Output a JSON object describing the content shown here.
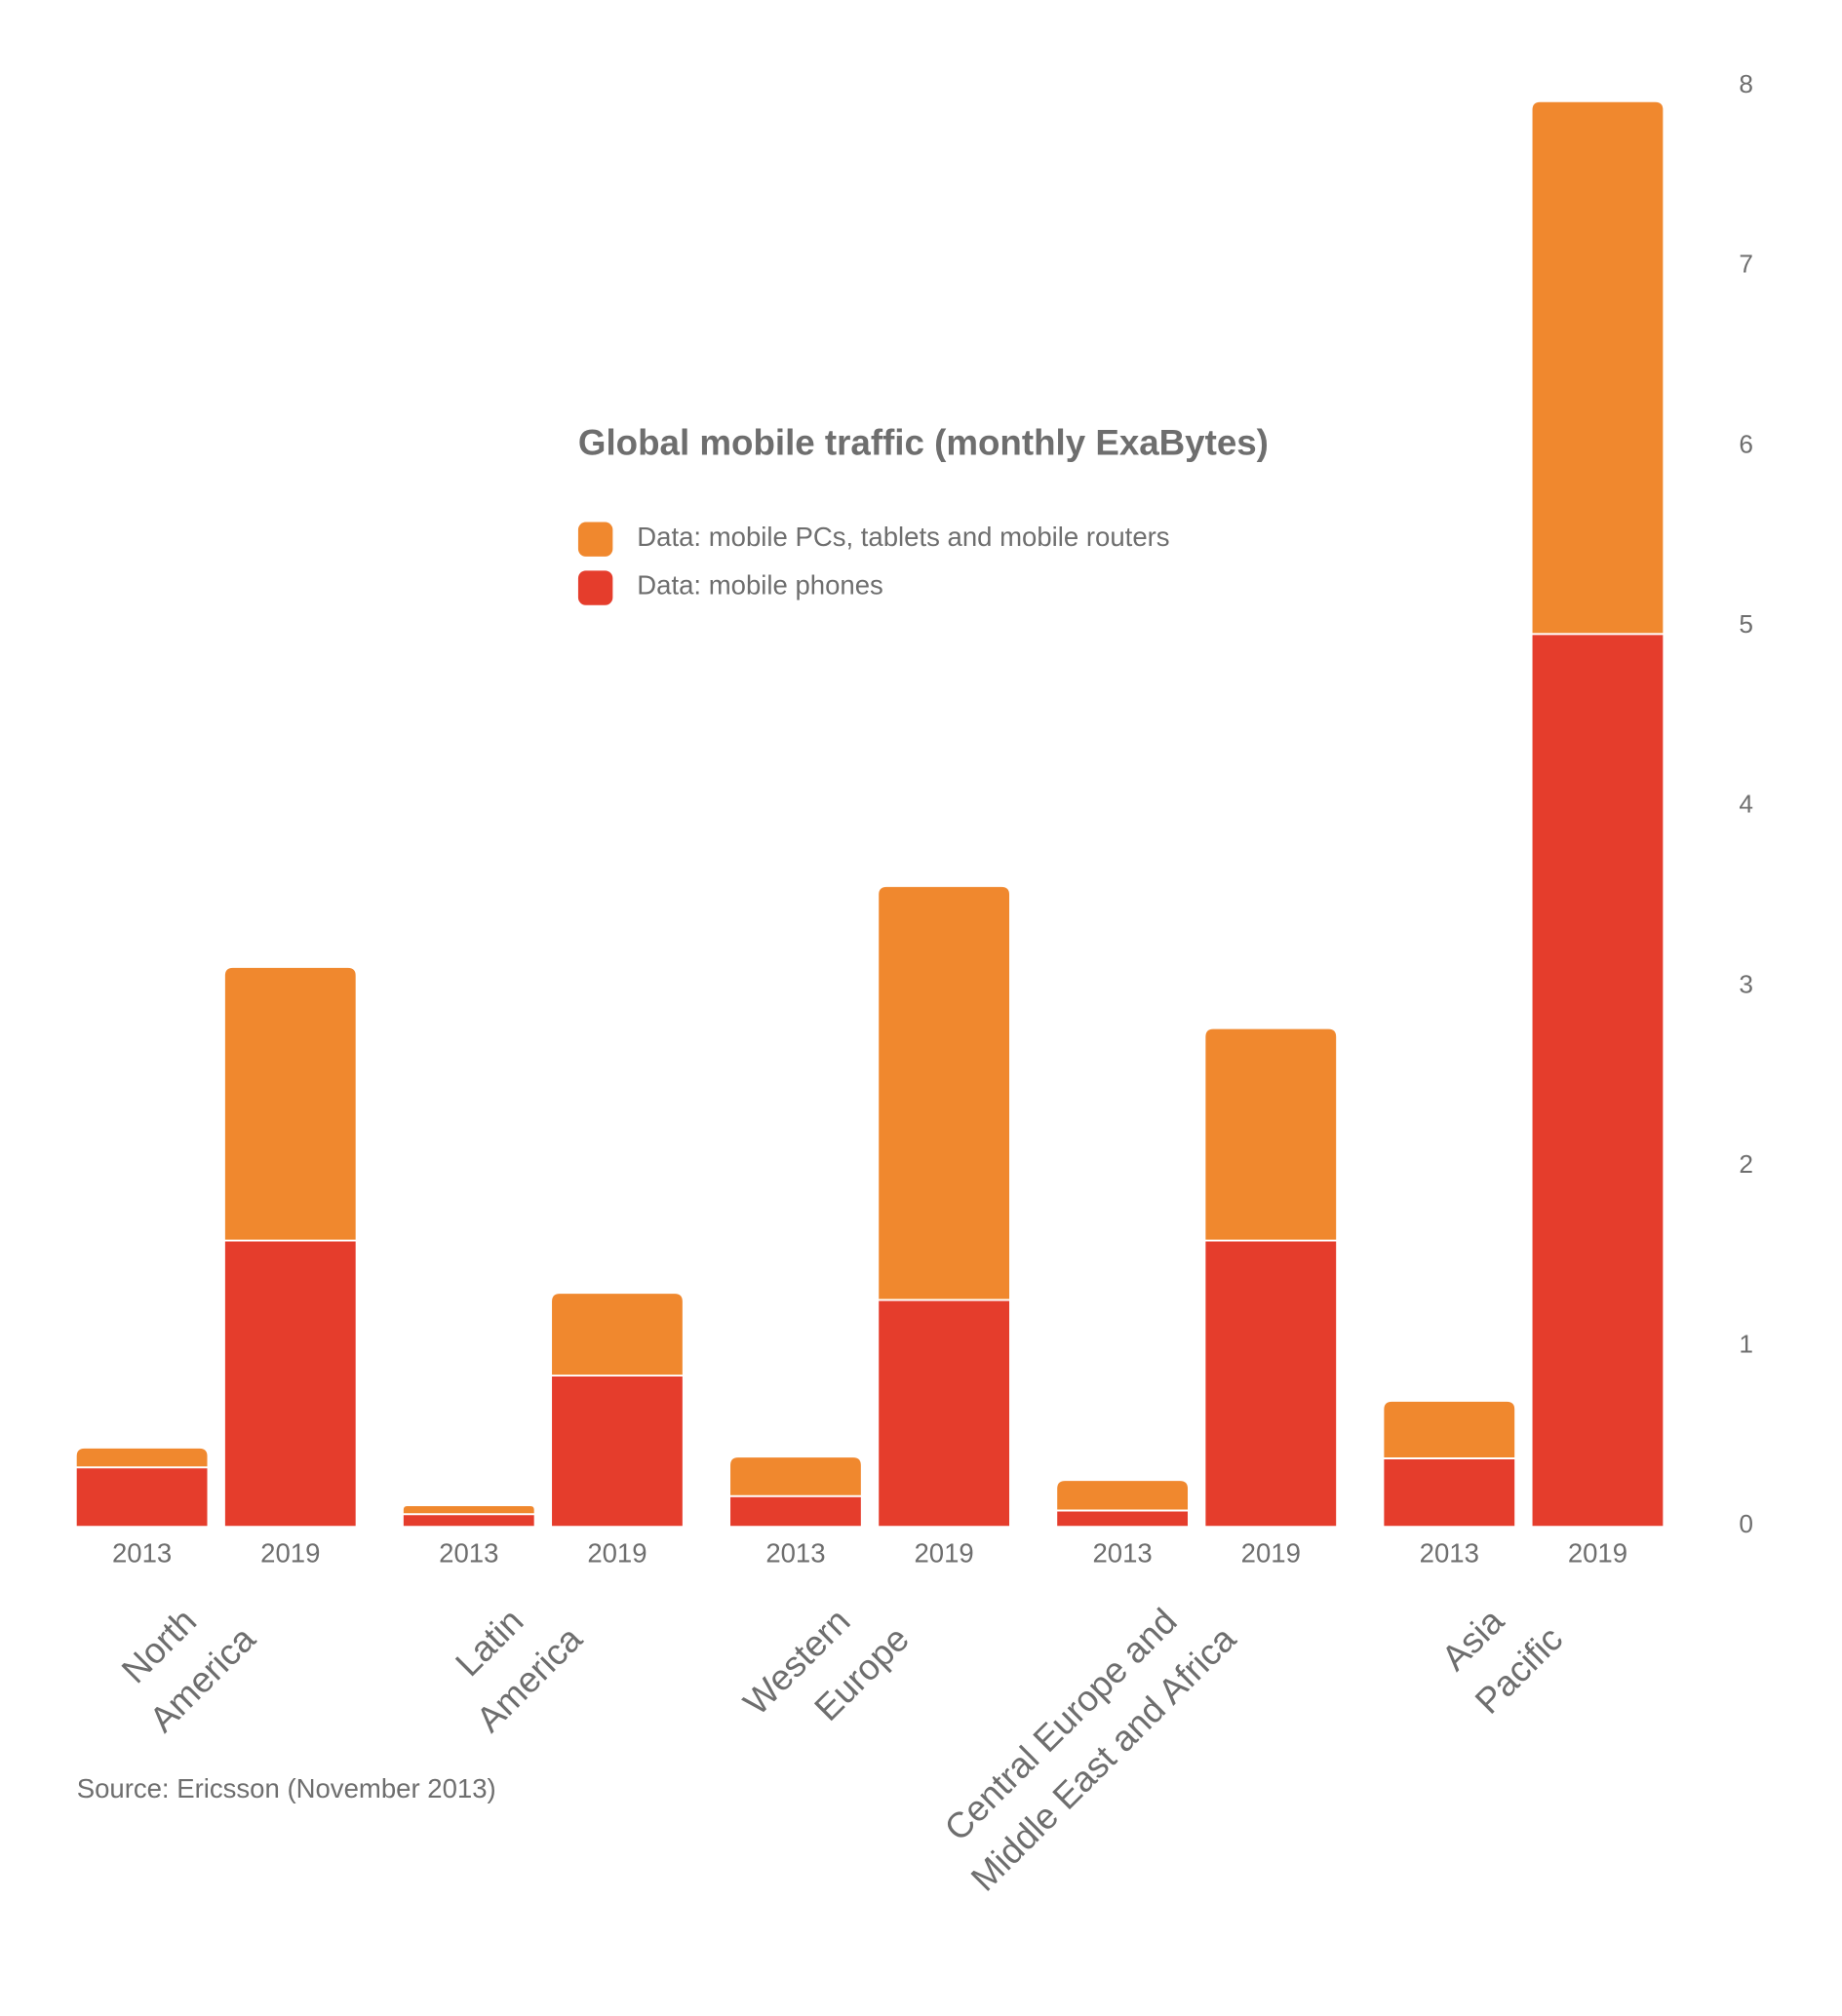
{
  "chart_data": {
    "type": "stacked_bar",
    "title": "Global mobile traffic (monthly ExaBytes)",
    "source": "Source: Ericsson (November 2013)",
    "categories": [
      "2013",
      "2019",
      "2013",
      "2019",
      "2013",
      "2019",
      "2013",
      "2019",
      "2013",
      "2019"
    ],
    "groups": [
      [
        "North",
        "America"
      ],
      [
        "Latin",
        "America"
      ],
      [
        "Western",
        "Europe"
      ],
      [
        "Central Europe and",
        "Middle East and Africa"
      ],
      [
        "Asia",
        "Pacific"
      ]
    ],
    "series": [
      {
        "name": "Data: mobile phones",
        "color": "#e53d2c",
        "values": [
          0.32,
          1.58,
          0.06,
          0.83,
          0.16,
          1.25,
          0.08,
          1.58,
          0.37,
          4.95
        ]
      },
      {
        "name": "Data: mobile PCs, tablets and mobile routers",
        "color": "#f0882e",
        "values": [
          0.11,
          1.52,
          0.05,
          0.46,
          0.22,
          2.3,
          0.17,
          1.18,
          0.32,
          2.96
        ]
      }
    ],
    "ylim": [
      0,
      8
    ],
    "yticks": [
      0,
      1,
      2,
      3,
      4,
      5,
      6,
      7,
      8
    ],
    "y_axis_side": "right"
  }
}
